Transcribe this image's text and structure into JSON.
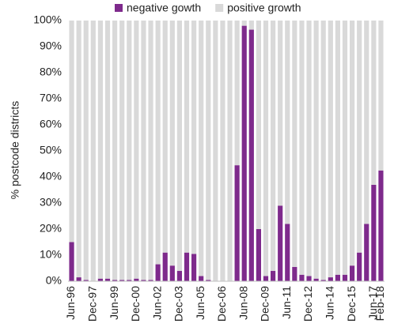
{
  "chart_data": {
    "type": "stacked_bar",
    "y_label": "% postcode districts",
    "categories": [
      "Jun-96",
      null,
      null,
      "Dec-97",
      null,
      null,
      "Jun-99",
      null,
      null,
      "Dec-00",
      null,
      null,
      "Jun-02",
      null,
      null,
      "Dec-03",
      null,
      null,
      "Jun-05",
      null,
      null,
      "Dec-06",
      null,
      null,
      "Jun-08",
      null,
      null,
      "Dec-09",
      null,
      null,
      "Jun-11",
      null,
      null,
      "Dec-12",
      null,
      null,
      "Jun-14",
      null,
      null,
      "Dec-15",
      null,
      null,
      "Jun-17",
      "Feb-18"
    ],
    "series": [
      {
        "name": "negative gowth",
        "color": "#7e2a8c",
        "values": [
          15,
          1.5,
          0.5,
          0,
          1,
          1,
          0.5,
          0.5,
          0.5,
          1,
          0.5,
          0.5,
          6.5,
          11,
          6,
          4,
          11,
          10.5,
          2,
          0.5,
          0,
          0,
          0,
          44.5,
          98,
          96.5,
          20,
          2,
          4,
          29,
          22,
          5.5,
          2.5,
          2,
          1,
          0.5,
          1.5,
          2.5,
          2.5,
          6,
          11,
          22,
          37,
          42.5
        ]
      },
      {
        "name": "positive growth",
        "color": "#d9d9d9",
        "values": [
          85,
          98.5,
          99.5,
          100,
          99,
          99,
          99.5,
          99.5,
          99.5,
          99,
          99.5,
          99.5,
          93.5,
          89,
          94,
          96,
          89,
          89.5,
          98,
          99.5,
          100,
          100,
          100,
          55.5,
          2,
          3.5,
          80,
          98,
          96,
          71,
          78,
          94.5,
          97.5,
          98,
          99,
          99.5,
          98.5,
          97.5,
          97.5,
          94,
          89,
          78,
          63,
          57.5
        ]
      }
    ],
    "ylim": [
      0,
      100
    ],
    "yticks": [
      {
        "value": 0,
        "label": "0%"
      },
      {
        "value": 10,
        "label": "10%"
      },
      {
        "value": 20,
        "label": "20%"
      },
      {
        "value": 30,
        "label": "30%"
      },
      {
        "value": 40,
        "label": "40%"
      },
      {
        "value": 50,
        "label": "50%"
      },
      {
        "value": 60,
        "label": "60%"
      },
      {
        "value": 70,
        "label": "70%"
      },
      {
        "value": 80,
        "label": "80%"
      },
      {
        "value": 90,
        "label": "90%"
      },
      {
        "value": 100,
        "label": "100%"
      }
    ],
    "legend": "top"
  }
}
